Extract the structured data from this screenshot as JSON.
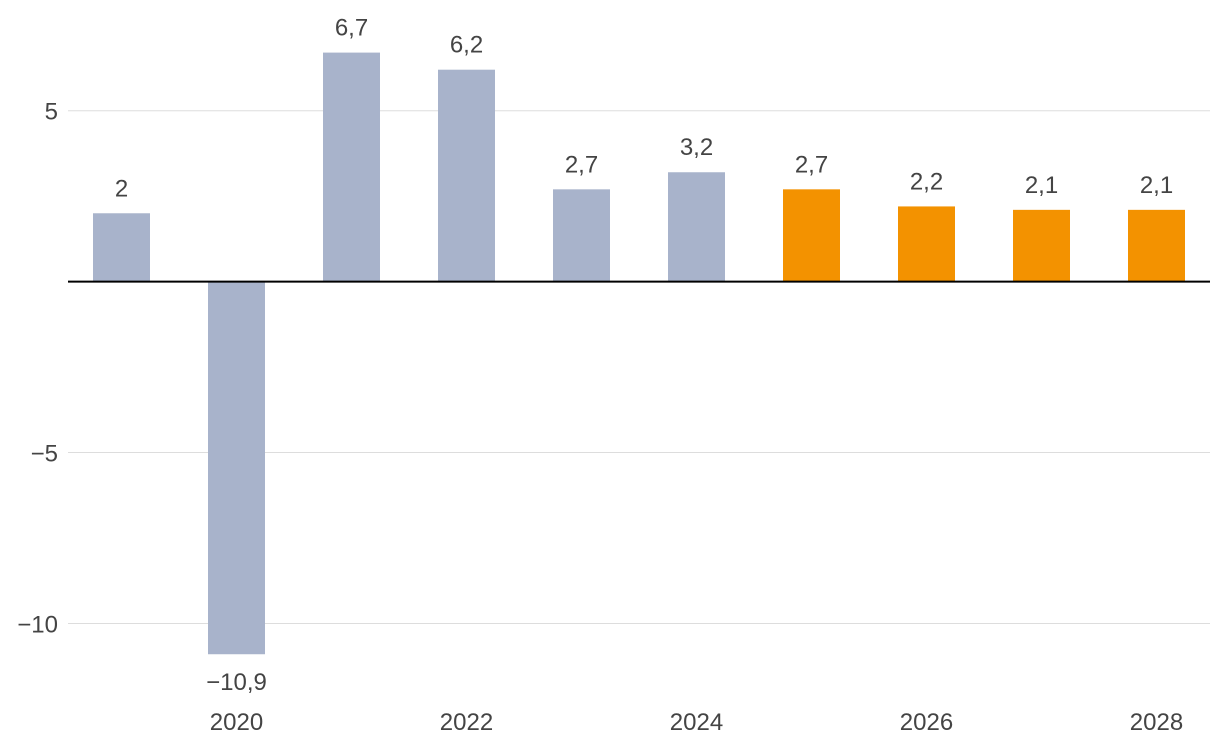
{
  "chart_data": {
    "type": "bar",
    "title": "",
    "xlabel": "",
    "ylabel": "",
    "categories": [
      "2019",
      "2020",
      "2021",
      "2022",
      "2023",
      "2024",
      "2025",
      "2026",
      "2027",
      "2028"
    ],
    "values": [
      2,
      -10.9,
      6.7,
      6.2,
      2.7,
      3.2,
      2.7,
      2.2,
      2.1,
      2.1
    ],
    "value_labels": [
      "2",
      "−10,9",
      "6,7",
      "6,2",
      "2,7",
      "3,2",
      "2,7",
      "2,2",
      "2,1",
      "2,1"
    ],
    "forecast": [
      false,
      false,
      false,
      false,
      false,
      false,
      true,
      true,
      true,
      true
    ],
    "ylim": [
      -11.8,
      7.8
    ],
    "yticks": [
      5,
      -5,
      -10
    ],
    "ytick_labels": [
      "5",
      "−5",
      "−10"
    ],
    "xtick_labels": [
      {
        "category": "2020",
        "label": "2020"
      },
      {
        "category": "2022",
        "label": "2022"
      },
      {
        "category": "2024",
        "label": "2024"
      },
      {
        "category": "2026",
        "label": "2026"
      },
      {
        "category": "2028",
        "label": "2028"
      }
    ],
    "grid": true,
    "colors": {
      "actual": "#a8b3cb",
      "forecast": "#f39200",
      "grid": "#dddddd",
      "zero_line": "#000000",
      "text": "#444444"
    }
  }
}
